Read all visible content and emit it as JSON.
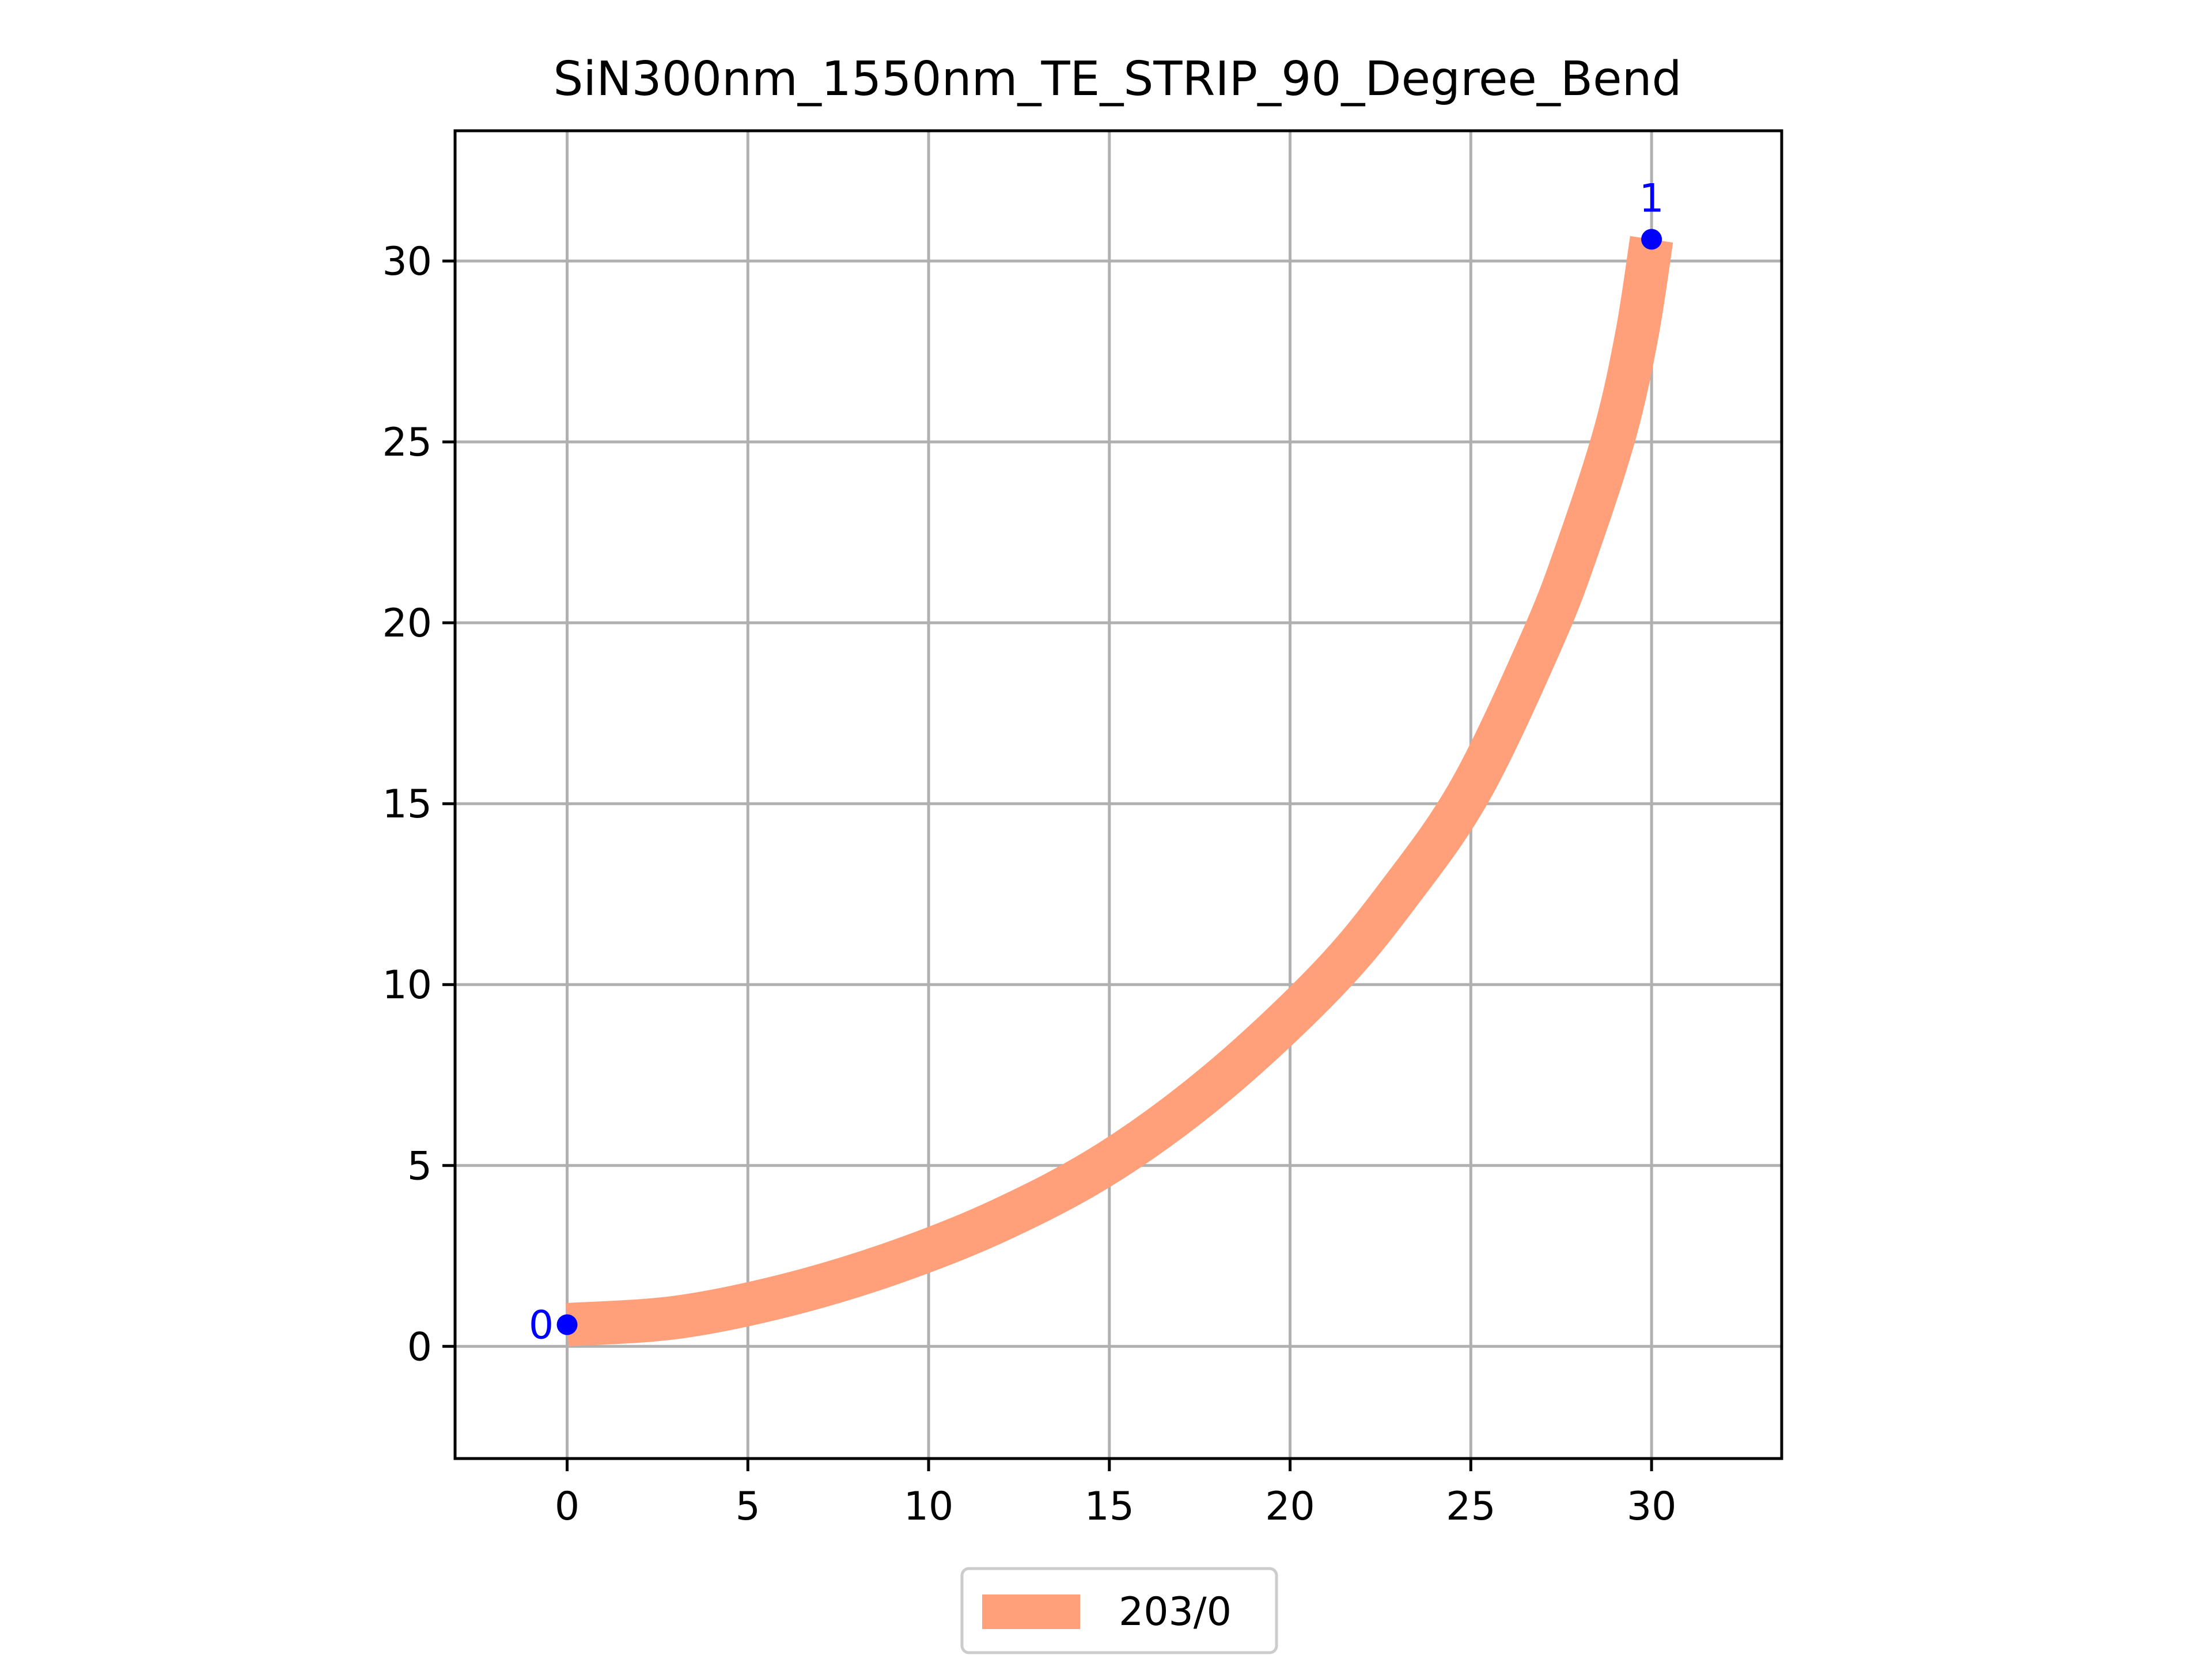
{
  "chart_data": {
    "type": "line",
    "title": "SiN300nm_1550nm_TE_STRIP_90_Degree_Bend",
    "xlabel": "",
    "ylabel": "",
    "xlim": [
      -3.1,
      33.6
    ],
    "ylim": [
      -3.1,
      33.6
    ],
    "x_ticks": [
      0,
      5,
      10,
      15,
      20,
      25,
      30
    ],
    "y_ticks": [
      0,
      5,
      10,
      15,
      20,
      25,
      30
    ],
    "x_tick_labels": [
      "0",
      "5",
      "10",
      "15",
      "20",
      "25",
      "30"
    ],
    "y_tick_labels": [
      "0",
      "5",
      "10",
      "15",
      "20",
      "25",
      "30"
    ],
    "grid": true,
    "legend_position": "bottom-center",
    "series": [
      {
        "name": "203/0",
        "color": "#ffa07a",
        "waveguide_width": 1.2,
        "path": {
          "x": [
            0,
            3,
            6,
            9,
            12,
            15,
            18,
            21,
            23,
            25,
            27,
            28,
            29,
            29.6,
            30
          ],
          "y": [
            0.6,
            0.8,
            1.4,
            2.3,
            3.5,
            5.1,
            7.3,
            10.1,
            12.5,
            15.4,
            19.6,
            22.2,
            25.3,
            28.0,
            30.6
          ]
        }
      }
    ],
    "ports": [
      {
        "label": "0",
        "x": 0,
        "y": 0.6,
        "color": "#0000ff"
      },
      {
        "label": "1",
        "x": 30,
        "y": 30.6,
        "color": "#0000ff"
      }
    ]
  }
}
